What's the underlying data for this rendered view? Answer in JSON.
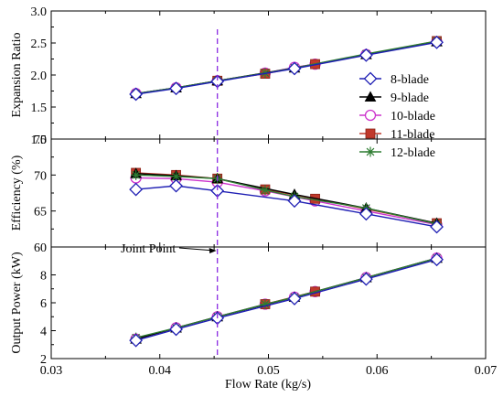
{
  "chart_data": {
    "type": "line",
    "xlabel": "Flow Rate (kg/s)",
    "xlim": [
      0.03,
      0.07
    ],
    "xticks": [
      "0.03",
      "0.04",
      "0.05",
      "0.06",
      "0.07"
    ],
    "grid": false,
    "legend_position": "right, inside top panel",
    "legend": [
      {
        "name": "8-blade",
        "marker": "diamond-open",
        "color": "#1f1fb4"
      },
      {
        "name": "9-blade",
        "marker": "triangle-filled",
        "color": "#000000"
      },
      {
        "name": "10-blade",
        "marker": "circle-open",
        "color": "#cc33cc"
      },
      {
        "name": "11-blade",
        "marker": "square-filled",
        "color": "#c0392b"
      },
      {
        "name": "12-blade",
        "marker": "asterisk",
        "color": "#2e7d32"
      }
    ],
    "annotations": [
      {
        "text": "Joint Point",
        "x": 0.0453,
        "y_panel": "efficiency-to-power boundary"
      }
    ],
    "reference_line": {
      "x": 0.0453,
      "style": "dashed",
      "color": "#8a2be2"
    },
    "panels": [
      {
        "ylabel": "Expansion Ratio",
        "ylim": [
          1.0,
          3.0
        ],
        "yticks": [
          "1.0",
          "1.5",
          "2.0",
          "2.5",
          "3.0"
        ],
        "series": [
          {
            "name": "8-blade",
            "points": [
              [
                0.0378,
                1.7
              ],
              [
                0.0415,
                1.79
              ],
              [
                0.0453,
                1.9
              ],
              [
                0.0524,
                2.1
              ],
              [
                0.059,
                2.31
              ],
              [
                0.0655,
                2.51
              ]
            ]
          },
          {
            "name": "9-blade",
            "points": [
              [
                0.0378,
                1.71
              ],
              [
                0.0415,
                1.8
              ],
              [
                0.0453,
                1.91
              ],
              [
                0.0524,
                2.11
              ],
              [
                0.059,
                2.32
              ],
              [
                0.0655,
                2.52
              ]
            ]
          },
          {
            "name": "10-blade",
            "points": [
              [
                0.0378,
                1.71
              ],
              [
                0.0415,
                1.8
              ],
              [
                0.0453,
                1.91
              ],
              [
                0.0497,
                2.03
              ],
              [
                0.0524,
                2.12
              ],
              [
                0.0543,
                2.17
              ],
              [
                0.059,
                2.32
              ],
              [
                0.0655,
                2.52
              ]
            ]
          },
          {
            "name": "11-blade",
            "points": [
              [
                0.0453,
                1.91
              ],
              [
                0.0497,
                2.02
              ],
              [
                0.0543,
                2.17
              ],
              [
                0.0655,
                2.53
              ]
            ]
          },
          {
            "name": "12-blade",
            "points": [
              [
                0.0378,
                1.71
              ],
              [
                0.0415,
                1.8
              ],
              [
                0.0453,
                1.91
              ],
              [
                0.0497,
                2.03
              ],
              [
                0.0524,
                2.11
              ],
              [
                0.059,
                2.33
              ],
              [
                0.0655,
                2.53
              ]
            ]
          }
        ]
      },
      {
        "ylabel": "Efficiency (%)",
        "ylim": [
          60,
          75
        ],
        "yticks": [
          "60",
          "65",
          "70",
          "75"
        ],
        "series": [
          {
            "name": "8-blade",
            "points": [
              [
                0.0378,
                68.0
              ],
              [
                0.0415,
                68.5
              ],
              [
                0.0453,
                67.8
              ],
              [
                0.0524,
                66.4
              ],
              [
                0.059,
                64.6
              ],
              [
                0.0655,
                62.8
              ]
            ]
          },
          {
            "name": "9-blade",
            "points": [
              [
                0.0378,
                70.2
              ],
              [
                0.0415,
                69.9
              ],
              [
                0.0453,
                69.5
              ],
              [
                0.0524,
                67.3
              ],
              [
                0.059,
                65.4
              ],
              [
                0.0655,
                63.3
              ]
            ]
          },
          {
            "name": "10-blade",
            "points": [
              [
                0.0378,
                69.6
              ],
              [
                0.0415,
                69.5
              ],
              [
                0.0453,
                69.0
              ],
              [
                0.0497,
                67.8
              ],
              [
                0.0543,
                66.4
              ],
              [
                0.059,
                65.0
              ],
              [
                0.0655,
                63.1
              ]
            ]
          },
          {
            "name": "11-blade",
            "points": [
              [
                0.0378,
                70.3
              ],
              [
                0.0415,
                70.0
              ],
              [
                0.0453,
                69.5
              ],
              [
                0.0497,
                68.0
              ],
              [
                0.0543,
                66.7
              ],
              [
                0.0655,
                63.3
              ]
            ]
          },
          {
            "name": "12-blade",
            "points": [
              [
                0.0378,
                70.0
              ],
              [
                0.0415,
                69.8
              ],
              [
                0.0453,
                69.5
              ],
              [
                0.0497,
                67.9
              ],
              [
                0.0524,
                67.0
              ],
              [
                0.059,
                65.4
              ],
              [
                0.0655,
                63.2
              ]
            ]
          }
        ]
      },
      {
        "ylabel": "Output Power (kW)",
        "ylim": [
          2,
          10
        ],
        "yticks": [
          "2",
          "4",
          "6",
          "8"
        ],
        "series": [
          {
            "name": "8-blade",
            "points": [
              [
                0.0378,
                3.3
              ],
              [
                0.0415,
                4.1
              ],
              [
                0.0453,
                4.9
              ],
              [
                0.0524,
                6.3
              ],
              [
                0.059,
                7.7
              ],
              [
                0.0655,
                9.1
              ]
            ]
          },
          {
            "name": "9-blade",
            "points": [
              [
                0.0378,
                3.4
              ],
              [
                0.0415,
                4.2
              ],
              [
                0.0453,
                5.0
              ],
              [
                0.0524,
                6.4
              ],
              [
                0.059,
                7.8
              ],
              [
                0.0655,
                9.2
              ]
            ]
          },
          {
            "name": "10-blade",
            "points": [
              [
                0.0378,
                3.4
              ],
              [
                0.0415,
                4.2
              ],
              [
                0.0453,
                5.0
              ],
              [
                0.0497,
                5.9
              ],
              [
                0.0524,
                6.4
              ],
              [
                0.0543,
                6.8
              ],
              [
                0.059,
                7.8
              ],
              [
                0.0655,
                9.2
              ]
            ]
          },
          {
            "name": "11-blade",
            "points": [
              [
                0.0497,
                5.9
              ],
              [
                0.0543,
                6.8
              ]
            ]
          },
          {
            "name": "12-blade",
            "points": [
              [
                0.0378,
                3.5
              ],
              [
                0.0415,
                4.2
              ],
              [
                0.0453,
                5.0
              ],
              [
                0.0497,
                5.9
              ],
              [
                0.0524,
                6.4
              ],
              [
                0.059,
                7.8
              ],
              [
                0.0655,
                9.2
              ]
            ]
          }
        ]
      }
    ]
  }
}
